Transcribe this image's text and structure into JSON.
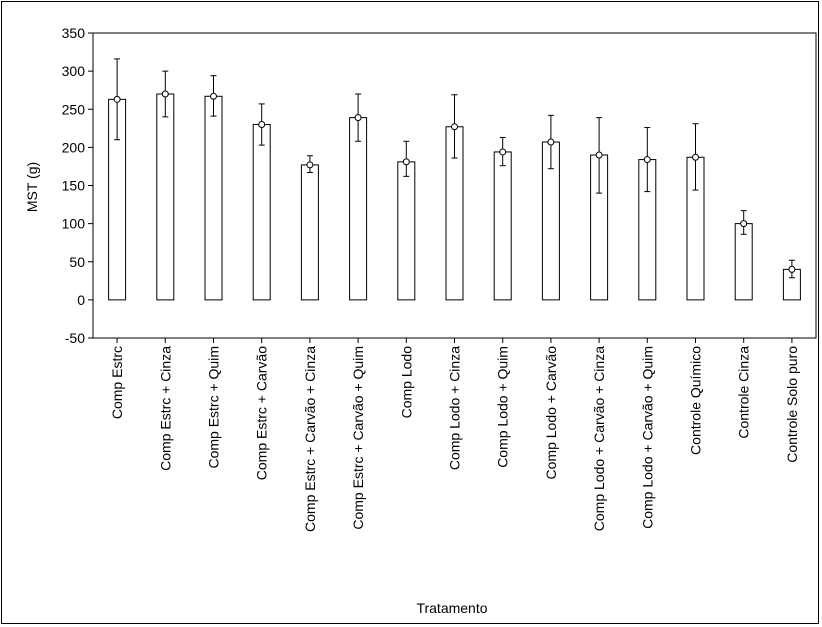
{
  "chart_data": {
    "type": "bar",
    "title": "",
    "xlabel": "Tratamento",
    "ylabel": "MST (g)",
    "ylim": [
      -50,
      350
    ],
    "yticks": [
      -50,
      0,
      50,
      100,
      150,
      200,
      250,
      300,
      350
    ],
    "grid": false,
    "categories": [
      "Comp Estrc",
      "Comp Estrc + Cinza",
      "Comp Estrc + Quim",
      "Comp Estrc + Carvão",
      "Comp Estrc + Carvão + Cinza",
      "Comp Estrc + Carvão + Quim",
      "Comp Lodo",
      "Comp Lodo + Cinza",
      "Comp Lodo + Quim",
      "Comp Lodo + Carvão",
      "Comp Lodo + Carvão + Cinza",
      "Comp Lodo + Carvão + Quim",
      "Controle Químico",
      "Controle Cinza",
      "Controle Solo puro"
    ],
    "values": [
      263,
      270,
      267,
      230,
      177,
      239,
      181,
      227,
      194,
      207,
      190,
      184,
      187,
      100,
      40
    ],
    "error_low": [
      210,
      240,
      241,
      203,
      167,
      208,
      162,
      186,
      176,
      172,
      140,
      142,
      144,
      86,
      29
    ],
    "error_high": [
      316,
      300,
      294,
      257,
      189,
      270,
      208,
      269,
      213,
      242,
      239,
      226,
      231,
      117,
      52
    ]
  }
}
